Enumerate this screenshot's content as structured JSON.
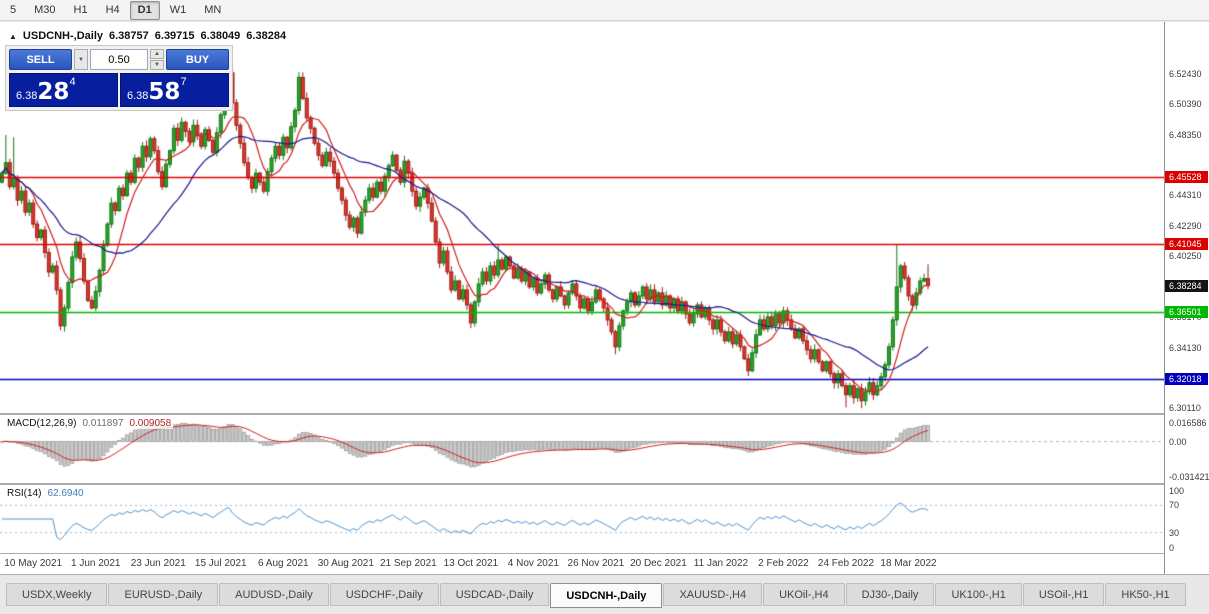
{
  "toolbar": {
    "timeframes": [
      {
        "label": "5",
        "active": false
      },
      {
        "label": "M30",
        "active": false
      },
      {
        "label": "H1",
        "active": false
      },
      {
        "label": "H4",
        "active": false
      },
      {
        "label": "D1",
        "active": true
      },
      {
        "label": "W1",
        "active": false
      },
      {
        "label": "MN",
        "active": false
      }
    ]
  },
  "chart_header": {
    "collapse_icon": "▲",
    "title": "USDCNH-,Daily",
    "open": "6.38757",
    "high": "6.39715",
    "low": "6.38049",
    "close": "6.38284"
  },
  "one_click": {
    "sell_label": "SELL",
    "buy_label": "BUY",
    "lot_value": "0.50",
    "combo_icon": "▼",
    "spin_up_icon": "▲",
    "spin_down_icon": "▼",
    "sell_price": {
      "prefix": "6.38",
      "big": "28",
      "sup": "4"
    },
    "buy_price": {
      "prefix": "6.38",
      "big": "58",
      "sup": "7"
    }
  },
  "indicators": {
    "macd": {
      "label": "MACD(12,26,9)",
      "main_value": "0.011897",
      "signal_value": "0.009058",
      "axis_labels": [
        "0.016586",
        "0.00",
        "-0.031421"
      ],
      "axis_values": [
        0.016586,
        0,
        -0.031421
      ]
    },
    "rsi": {
      "label": "RSI(14)",
      "value": "62.6940",
      "axis_labels": [
        "100",
        "70",
        "30",
        "0"
      ],
      "axis_values": [
        100,
        70,
        30,
        0
      ]
    }
  },
  "tabs": [
    {
      "label": "USDX,Weekly",
      "active": false
    },
    {
      "label": "EURUSD-,Daily",
      "active": false
    },
    {
      "label": "AUDUSD-,Daily",
      "active": false
    },
    {
      "label": "USDCHF-,Daily",
      "active": false
    },
    {
      "label": "USDCAD-,Daily",
      "active": false
    },
    {
      "label": "USDCNH-,Daily",
      "active": true
    },
    {
      "label": "XAUUSD-,H4",
      "active": false
    },
    {
      "label": "UKOil-,H4",
      "active": false
    },
    {
      "label": "DJ30-,Daily",
      "active": false
    },
    {
      "label": "UK100-,H1",
      "active": false
    },
    {
      "label": "USOil-,H1",
      "active": false
    },
    {
      "label": "HK50-,H1",
      "active": false
    }
  ],
  "chart_data": {
    "type": "candlestick",
    "title": "USDCNH-,Daily",
    "ohlc_readout": {
      "open": 6.38757,
      "high": 6.39715,
      "low": 6.38049,
      "close": 6.38284
    },
    "x_labels": [
      "10 May 2021",
      "1 Jun 2021",
      "23 Jun 2021",
      "15 Jul 2021",
      "6 Aug 2021",
      "30 Aug 2021",
      "21 Sep 2021",
      "13 Oct 2021",
      "4 Nov 2021",
      "26 Nov 2021",
      "20 Dec 2021",
      "11 Jan 2022",
      "2 Feb 2022",
      "24 Feb 2022",
      "18 Mar 2022"
    ],
    "x_first_tick_index": 8,
    "x_tick_step": 16,
    "y_ticks": [
      6.5243,
      6.5039,
      6.4835,
      6.4431,
      6.4229,
      6.4025,
      6.3617,
      6.3413,
      6.3011
    ],
    "price_range": [
      6.2978,
      6.559
    ],
    "levels": [
      {
        "value": 6.45528,
        "label": "6.45528",
        "color": "#dd0000"
      },
      {
        "value": 6.41045,
        "label": "6.41045",
        "color": "#dd0000"
      },
      {
        "value": 6.36501,
        "label": "6.36501",
        "color": "#00b800"
      },
      {
        "value": 6.32018,
        "label": "6.32018",
        "color": "#0000bb"
      }
    ],
    "current_price": {
      "value": 6.38284,
      "label": "6.38284",
      "bg": "#141414"
    },
    "candles": {
      "first_open": 6.452,
      "closes": [
        6.458,
        6.465,
        6.449,
        6.455,
        6.44,
        6.446,
        6.432,
        6.438,
        6.424,
        6.415,
        6.42,
        6.405,
        6.392,
        6.396,
        6.38,
        6.356,
        6.368,
        6.385,
        6.402,
        6.412,
        6.401,
        6.386,
        6.373,
        6.368,
        6.379,
        6.393,
        6.41,
        6.424,
        6.438,
        6.433,
        6.448,
        6.443,
        6.458,
        6.452,
        6.468,
        6.462,
        6.476,
        6.469,
        6.481,
        6.473,
        6.459,
        6.449,
        6.464,
        6.473,
        6.488,
        6.48,
        6.492,
        6.486,
        6.479,
        6.49,
        6.483,
        6.476,
        6.487,
        6.48,
        6.472,
        6.485,
        6.497,
        6.512,
        6.525,
        6.505,
        6.49,
        6.478,
        6.465,
        6.455,
        6.448,
        6.458,
        6.452,
        6.446,
        6.459,
        6.468,
        6.476,
        6.47,
        6.482,
        6.475,
        6.489,
        6.5,
        6.522,
        6.508,
        6.495,
        6.488,
        6.478,
        6.47,
        6.463,
        6.472,
        6.466,
        6.458,
        6.448,
        6.44,
        6.43,
        6.422,
        6.428,
        6.418,
        6.432,
        6.44,
        6.448,
        6.442,
        6.452,
        6.446,
        6.456,
        6.463,
        6.47,
        6.46,
        6.452,
        6.466,
        6.458,
        6.446,
        6.436,
        6.442,
        6.448,
        6.438,
        6.426,
        6.412,
        6.398,
        6.406,
        6.392,
        6.38,
        6.386,
        6.374,
        6.38,
        6.37,
        6.358,
        6.372,
        6.384,
        6.392,
        6.386,
        6.396,
        6.39,
        6.4,
        6.394,
        6.402,
        6.396,
        6.388,
        6.394,
        6.386,
        6.392,
        6.382,
        6.388,
        6.378,
        6.384,
        6.39,
        6.38,
        6.374,
        6.382,
        6.376,
        6.37,
        6.378,
        6.384,
        6.376,
        6.368,
        6.374,
        6.366,
        6.372,
        6.38,
        6.374,
        6.368,
        6.36,
        6.352,
        6.342,
        6.356,
        6.366,
        6.372,
        6.378,
        6.37,
        6.376,
        6.382,
        6.374,
        6.38,
        6.372,
        6.378,
        6.37,
        6.376,
        6.368,
        6.374,
        6.366,
        6.372,
        6.364,
        6.358,
        6.364,
        6.37,
        6.362,
        6.368,
        6.36,
        6.354,
        6.36,
        6.352,
        6.346,
        6.352,
        6.344,
        6.35,
        6.342,
        6.334,
        6.326,
        6.338,
        6.35,
        6.36,
        6.354,
        6.362,
        6.356,
        6.364,
        6.358,
        6.366,
        6.36,
        6.354,
        6.348,
        6.354,
        6.346,
        6.34,
        6.334,
        6.34,
        6.332,
        6.326,
        6.332,
        6.324,
        6.318,
        6.324,
        6.316,
        6.31,
        6.316,
        6.308,
        6.314,
        6.306,
        6.312,
        6.318,
        6.31,
        6.316,
        6.322,
        6.33,
        6.342,
        6.36,
        6.382,
        6.396,
        6.388,
        6.376,
        6.37,
        6.378,
        6.386,
        6.38757,
        6.38284
      ],
      "wick_overrides": {
        "1": {
          "h": 6.4835
        },
        "3": {
          "h": 6.482
        },
        "15": {
          "l": 6.353
        },
        "58": {
          "h": 6.5295
        },
        "76": {
          "h": 6.5255
        },
        "120": {
          "l": 6.3545
        },
        "127": {
          "h": 6.4105
        },
        "157": {
          "l": 6.337
        },
        "191": {
          "l": 6.3225
        },
        "216": {
          "l": 6.3015
        },
        "220": {
          "l": 6.301
        },
        "229": {
          "h": 6.41
        },
        "237": {
          "h": 6.39715,
          "l": 6.38049
        }
      }
    },
    "moving_averages": [
      {
        "period": 8,
        "color": "#cf1f1f"
      },
      {
        "period": 26,
        "color": "#1a1a8e"
      }
    ],
    "macd": {
      "fast": 12,
      "slow": 26,
      "signal": 9,
      "range": [
        -0.0368,
        0.0237
      ],
      "histogram_fill": "#cbcbcb",
      "histogram_border": "#8e8e8e",
      "signal_color": "#cc2222",
      "zero_color": "#b0b0b0"
    },
    "rsi": {
      "period": 14,
      "range": [
        0,
        100
      ],
      "guide_levels": [
        70,
        30
      ],
      "color": "#4f94cd",
      "guide_color": "#a7bcd9"
    },
    "candle_colors": {
      "up_fill": "#2ba32b",
      "up_border": "#187818",
      "down_fill": "#de362b",
      "down_border": "#9c2018"
    }
  }
}
